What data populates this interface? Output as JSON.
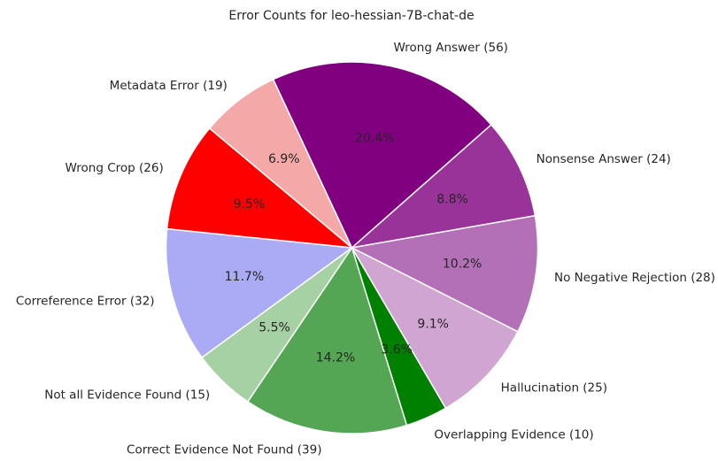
{
  "chart_data": {
    "type": "pie",
    "title": "Error Counts for leo-hessian-7B-chat-de",
    "slices": [
      {
        "label": "Metadata Error (19)",
        "value": 19,
        "pct": "6.9%",
        "color": "#f4a9a8"
      },
      {
        "label": "Wrong Answer (56)",
        "value": 56,
        "pct": "20.4%",
        "color": "#800080"
      },
      {
        "label": "Nonsense Answer (24)",
        "value": 24,
        "pct": "8.8%",
        "color": "#993399"
      },
      {
        "label": "No Negative Rejection (28)",
        "value": 28,
        "pct": "10.2%",
        "color": "#b370b6"
      },
      {
        "label": "Hallucination (25)",
        "value": 25,
        "pct": "9.1%",
        "color": "#d0a5d1"
      },
      {
        "label": "Overlapping Evidence (10)",
        "value": 10,
        "pct": "3.6%",
        "color": "#008000"
      },
      {
        "label": "Correct Evidence Not Found (39)",
        "value": 39,
        "pct": "14.2%",
        "color": "#54a654"
      },
      {
        "label": "Not all Evidence Found (15)",
        "value": 15,
        "pct": "5.5%",
        "color": "#a6d1a4"
      },
      {
        "label": "Correference Error (32)",
        "value": 32,
        "pct": "11.7%",
        "color": "#aaaaf5"
      },
      {
        "label": "Wrong Crop (26)",
        "value": 26,
        "pct": "9.5%",
        "color": "#ff0000"
      }
    ],
    "start_angle_deg": 140,
    "direction": "clockwise",
    "legend": "none"
  }
}
